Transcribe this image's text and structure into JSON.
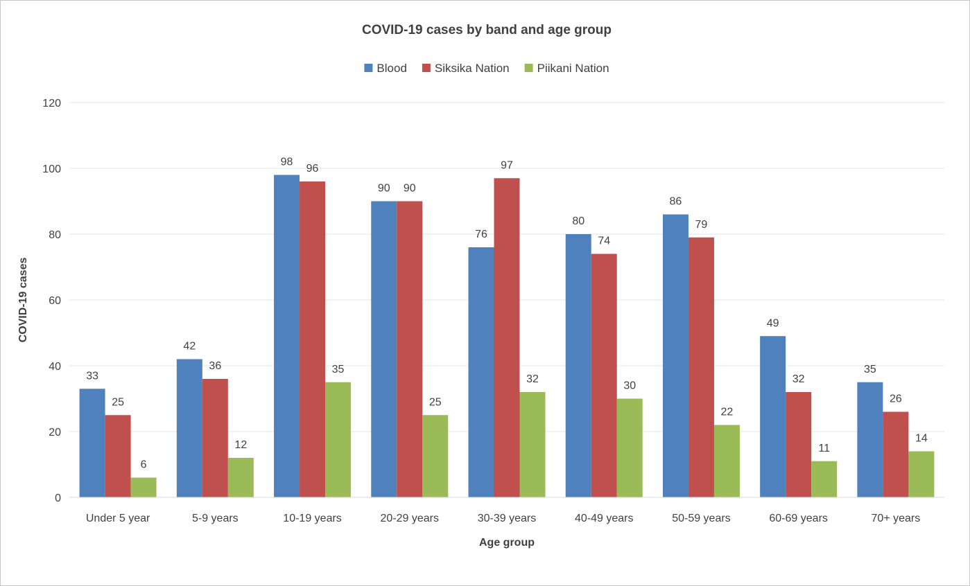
{
  "chart_data": {
    "type": "bar",
    "title": "COVID-19 cases by band and age group",
    "xlabel": "Age group",
    "ylabel": "COVID-19 cases",
    "ylim": [
      0,
      120
    ],
    "yticks": [
      0,
      20,
      40,
      60,
      80,
      100,
      120
    ],
    "grid": true,
    "legend_position": "top",
    "categories": [
      "Under 5 year",
      "5-9 years",
      "10-19 years",
      "20-29 years",
      "30-39 years",
      "40-49 years",
      "50-59 years",
      "60-69 years",
      "70+ years"
    ],
    "series": [
      {
        "name": "Blood",
        "color": "#4f81bd",
        "values": [
          33,
          42,
          98,
          90,
          76,
          80,
          86,
          49,
          35
        ]
      },
      {
        "name": "Siksika Nation",
        "color": "#c0504d",
        "values": [
          25,
          36,
          96,
          90,
          97,
          74,
          79,
          32,
          26
        ]
      },
      {
        "name": "Piikani Nation",
        "color": "#9bbb59",
        "values": [
          6,
          12,
          35,
          25,
          32,
          30,
          22,
          11,
          14
        ]
      }
    ]
  }
}
